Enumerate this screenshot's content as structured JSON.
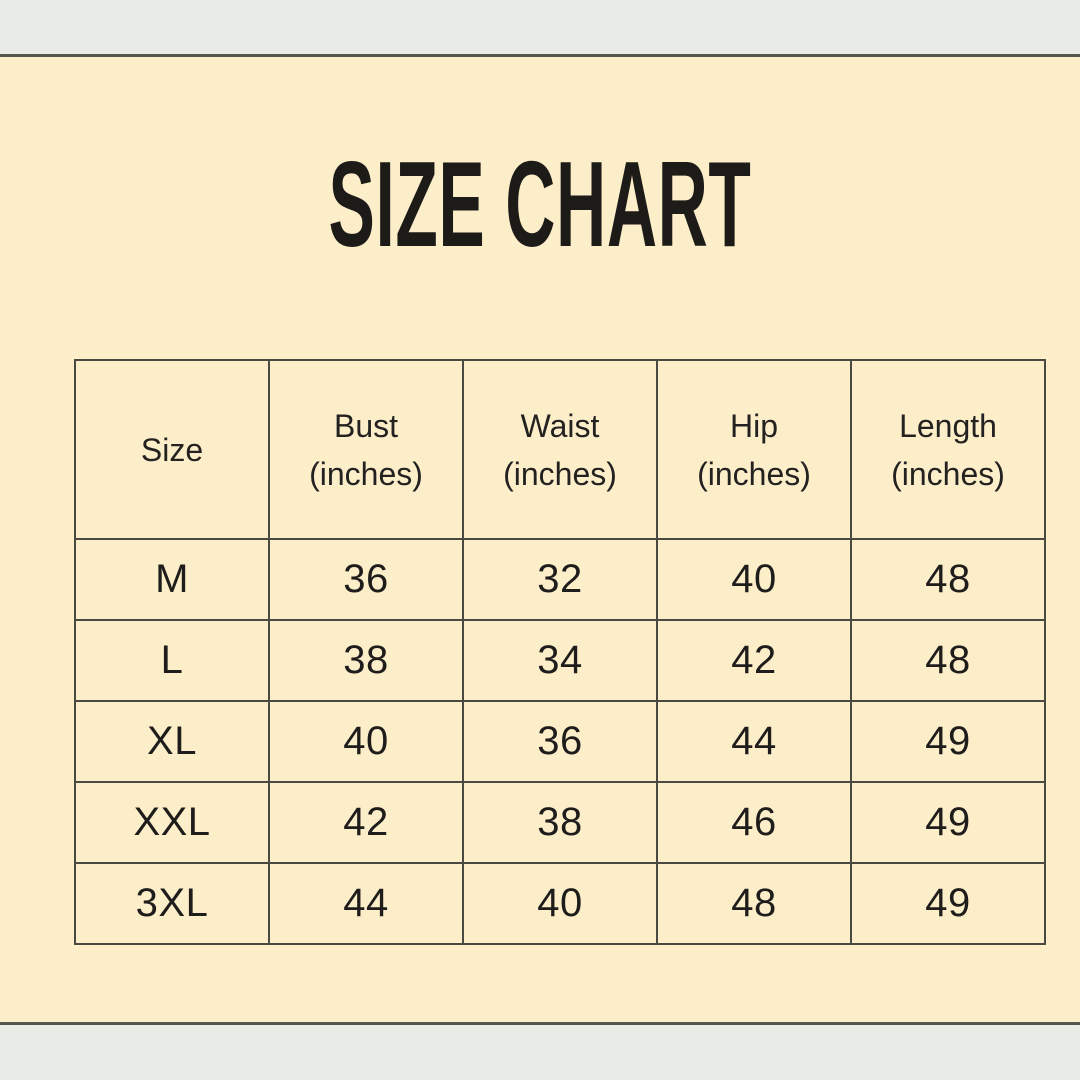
{
  "page": {
    "background_color": "#fdeeca",
    "strip_color": "#e9ebe6",
    "divider_color": "#56554c",
    "table_border_color": "#4a4942",
    "title_color": "#1c1b17"
  },
  "title": "SIZE CHART",
  "chart_data": {
    "type": "table",
    "title": "SIZE CHART",
    "columns": [
      {
        "label": "Size",
        "unit": ""
      },
      {
        "label": "Bust",
        "unit": "(inches)"
      },
      {
        "label": "Waist",
        "unit": "(inches)"
      },
      {
        "label": "Hip",
        "unit": "(inches)"
      },
      {
        "label": "Length",
        "unit": "(inches)"
      }
    ],
    "rows": [
      [
        "M",
        "36",
        "32",
        "40",
        "48"
      ],
      [
        "L",
        "38",
        "34",
        "42",
        "48"
      ],
      [
        "XL",
        "40",
        "36",
        "44",
        "49"
      ],
      [
        "XXL",
        "42",
        "38",
        "46",
        "49"
      ],
      [
        "3XL",
        "44",
        "40",
        "48",
        "49"
      ]
    ]
  }
}
